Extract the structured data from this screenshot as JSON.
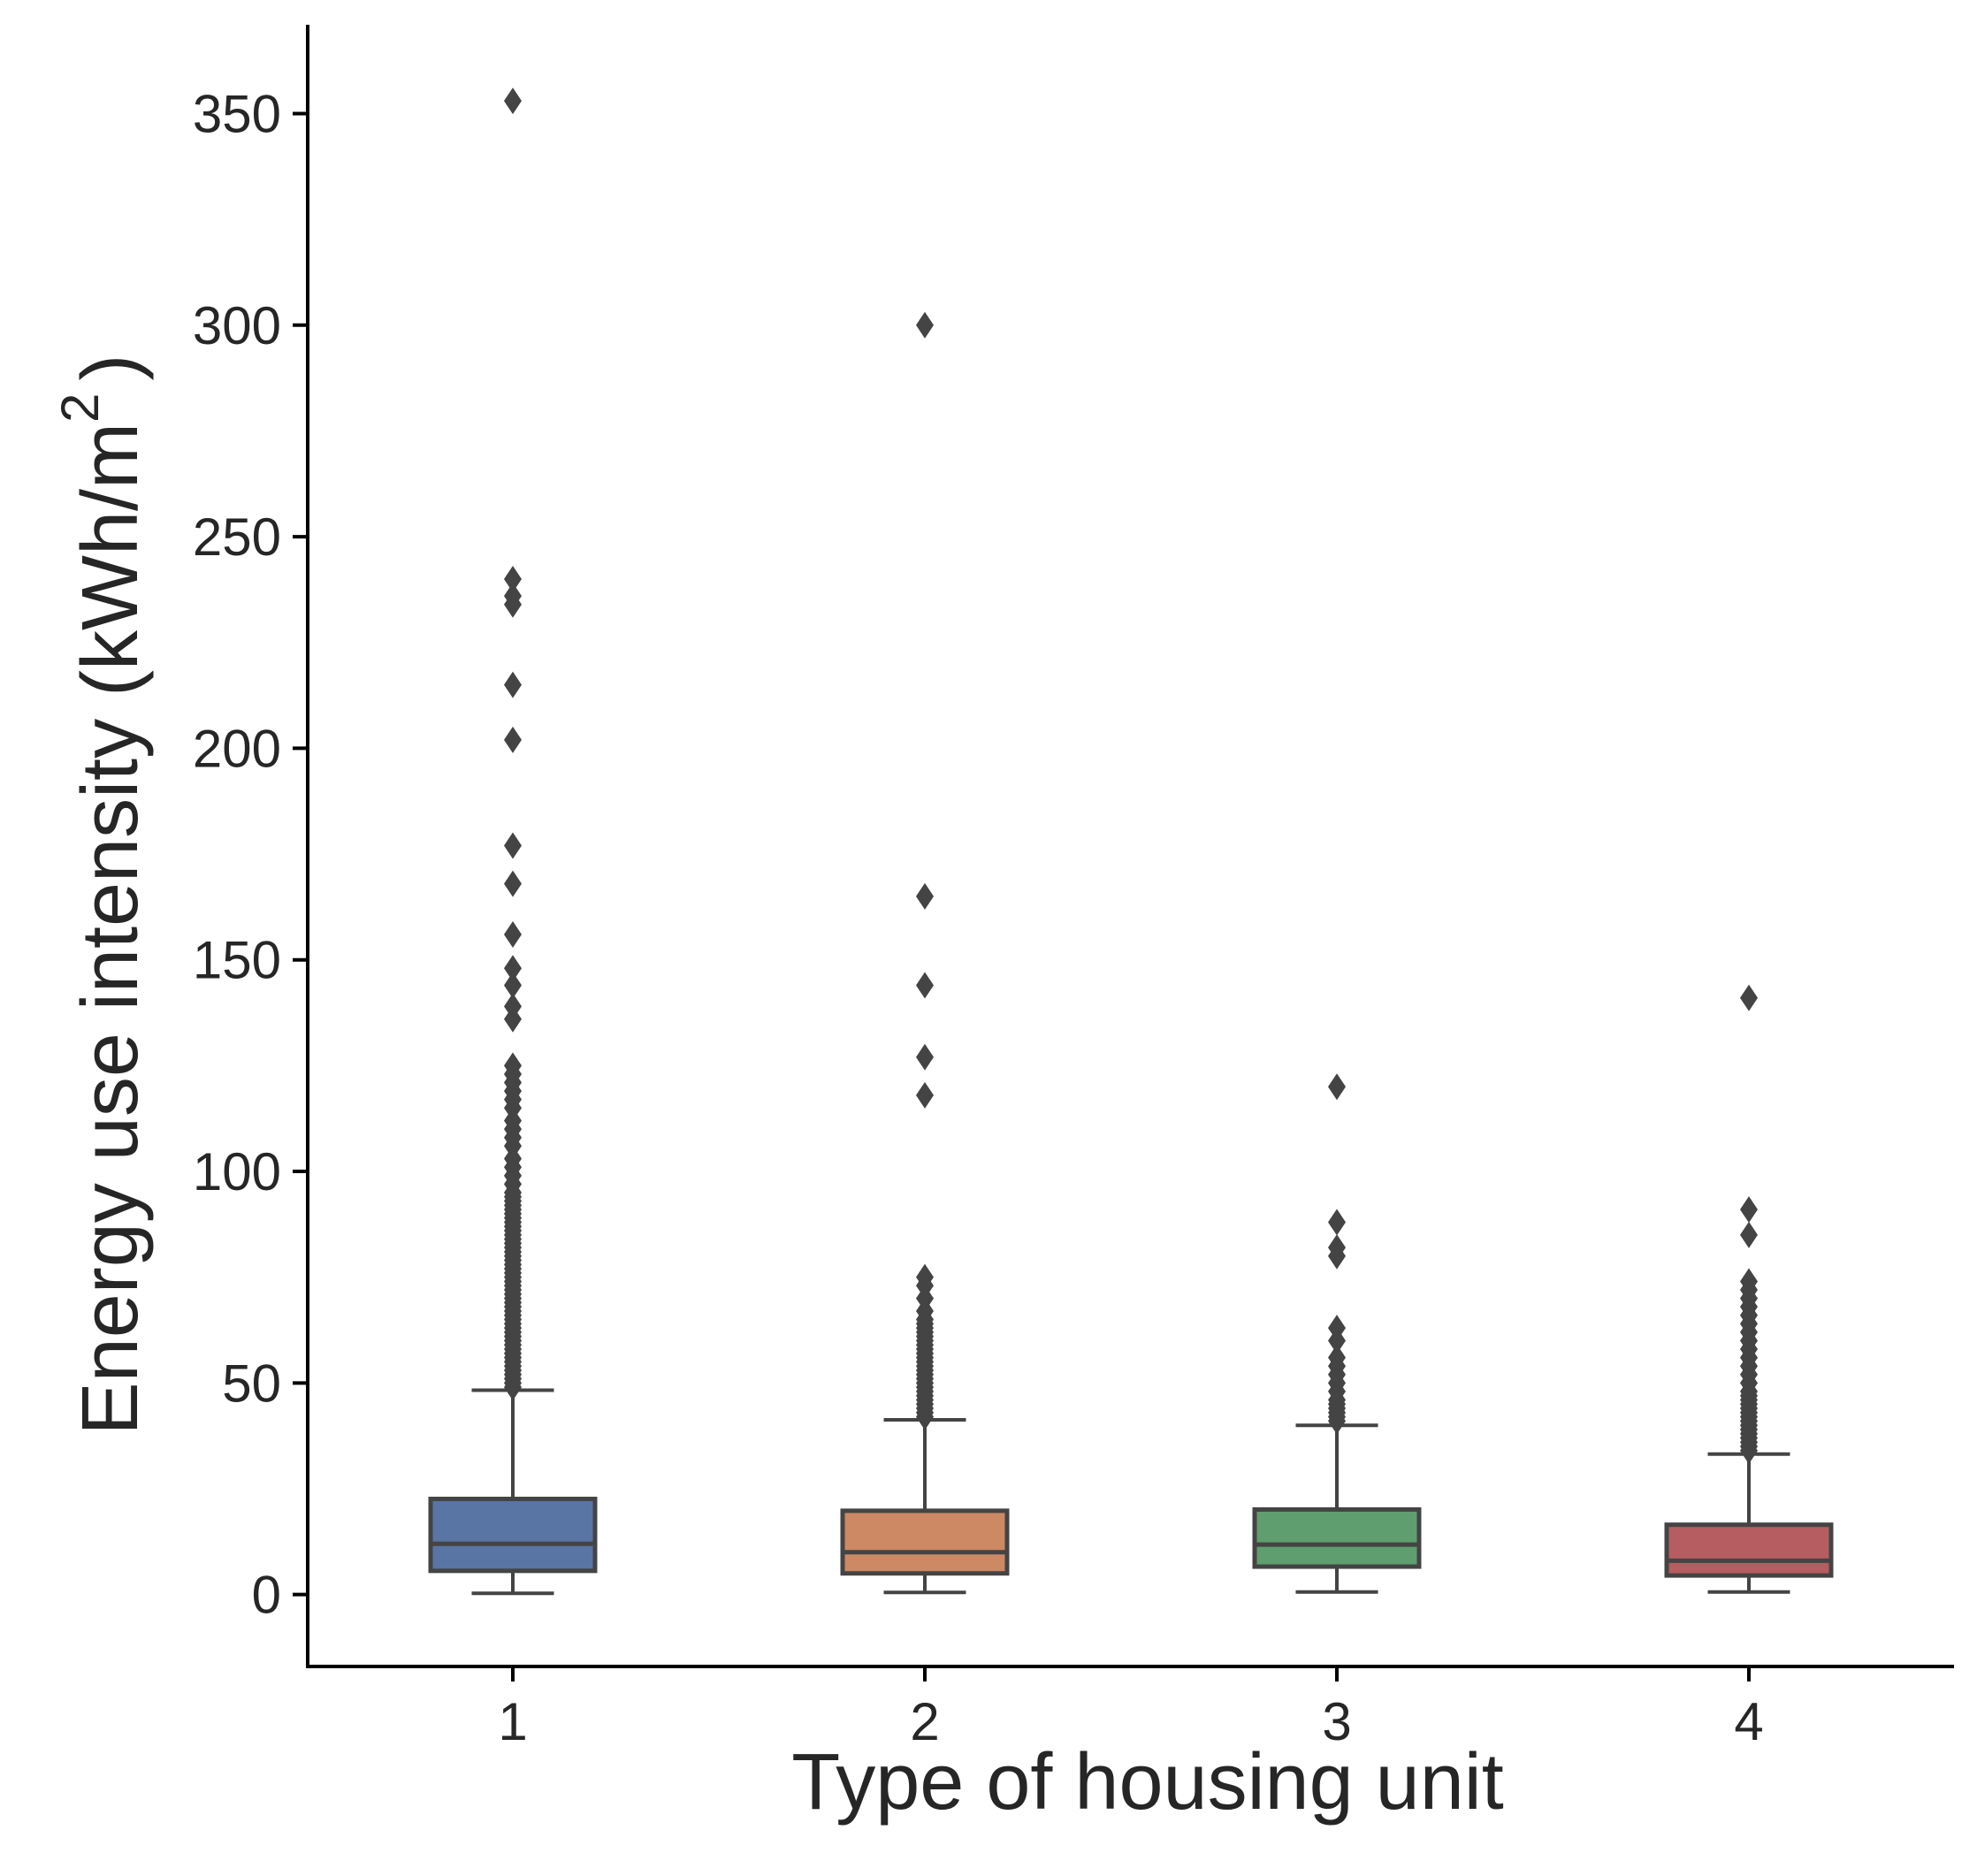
{
  "chart_data": {
    "type": "box",
    "xlabel": "Type of housing unit",
    "ylabel": {
      "main": "Energy use intensity (kWh/m",
      "superscript": "2",
      "suffix": ")"
    },
    "ylim": [
      -17,
      371
    ],
    "yticks": [
      0,
      50,
      100,
      150,
      200,
      250,
      300,
      350
    ],
    "categories": [
      "1",
      "2",
      "3",
      "4"
    ],
    "grid": false,
    "colors": {
      "box_edge": "#444444",
      "axis": "#000000",
      "text": "#262626",
      "fills": [
        "#5875a4",
        "#cc8963",
        "#5f9e6e",
        "#b55d60"
      ]
    },
    "boxes": [
      {
        "category": "1",
        "whisker_low": 0.3,
        "q1": 5.6,
        "median": 12.0,
        "q3": 22.6,
        "whisker_high": 48.3,
        "outliers": [
          49,
          50,
          51,
          52,
          53,
          54,
          55,
          56,
          57,
          58,
          59,
          60,
          61,
          62,
          63,
          64,
          65,
          66,
          67,
          68,
          69,
          70,
          71,
          72,
          73,
          74,
          75,
          76,
          77,
          78,
          79,
          80,
          81,
          82,
          83,
          84,
          85,
          86,
          87,
          88,
          89,
          90,
          91,
          92,
          93,
          94,
          95,
          97,
          99,
          101,
          103,
          106,
          108,
          110,
          112,
          115,
          117,
          119,
          121,
          123,
          125,
          136,
          139,
          144,
          148,
          156,
          168,
          177,
          202,
          215,
          234,
          236,
          240,
          353
        ]
      },
      {
        "category": "2",
        "whisker_low": 0.5,
        "q1": 5.0,
        "median": 10.0,
        "q3": 19.8,
        "whisker_high": 41.3,
        "outliers": [
          42,
          43,
          44,
          45,
          46,
          47,
          48,
          49,
          50,
          51,
          52,
          53,
          54,
          55,
          56,
          57,
          58,
          59,
          60,
          61,
          62,
          63,
          64,
          65,
          67,
          70,
          73,
          75,
          118,
          127,
          144,
          165,
          300
        ]
      },
      {
        "category": "3",
        "whisker_low": 0.6,
        "q1": 6.6,
        "median": 11.8,
        "q3": 20.1,
        "whisker_high": 40.0,
        "outliers": [
          41,
          42,
          43,
          44,
          45,
          46,
          48,
          50,
          52,
          54,
          56,
          60,
          63,
          80,
          82,
          88,
          120
        ]
      },
      {
        "category": "4",
        "whisker_low": 0.6,
        "q1": 4.5,
        "median": 8.0,
        "q3": 16.5,
        "whisker_high": 33.2,
        "outliers": [
          34,
          35,
          36,
          37,
          38,
          39,
          40,
          41,
          42,
          43,
          44,
          45,
          46,
          47,
          48,
          50,
          52,
          54,
          56,
          58,
          60,
          62,
          64,
          66,
          68,
          70,
          72,
          74,
          85,
          91,
          141
        ]
      }
    ]
  }
}
